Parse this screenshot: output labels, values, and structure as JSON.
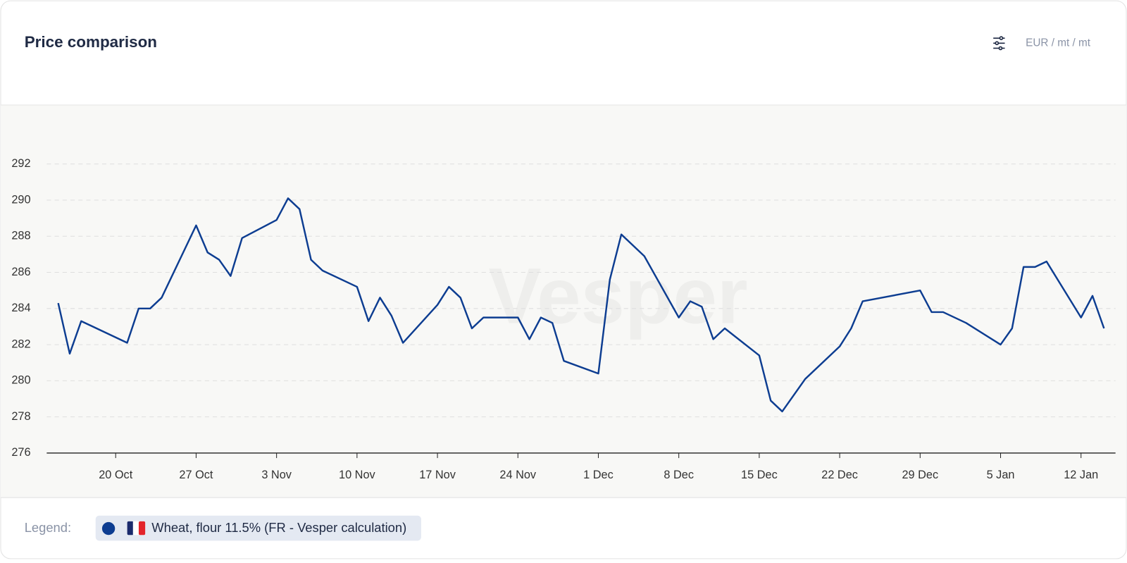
{
  "chart_data": {
    "type": "line",
    "title": "Price comparison",
    "unit": "EUR / mt / mt",
    "legend_label": "Legend:",
    "watermark": "Vesper",
    "x": [
      -5,
      -4,
      -3,
      1,
      2,
      3,
      4,
      7,
      8,
      9,
      10,
      11,
      14,
      15,
      16,
      17,
      18,
      21,
      22,
      23,
      24,
      25,
      28,
      29,
      30,
      31,
      32,
      35,
      36,
      37,
      38,
      39,
      42,
      43,
      44,
      46,
      49,
      50,
      51,
      52,
      53,
      56,
      57,
      58,
      60,
      63,
      64,
      65,
      70,
      71,
      72,
      74,
      77,
      78,
      79,
      80,
      81,
      84,
      85,
      86
    ],
    "series": [
      {
        "name": "Wheat, flour 11.5% (FR - Vesper calculation)",
        "color": "#0d3d91",
        "values": [
          284.3,
          281.5,
          283.3,
          282.1,
          284.0,
          284.0,
          284.6,
          288.6,
          287.1,
          286.7,
          285.8,
          287.9,
          288.9,
          290.1,
          289.5,
          286.7,
          286.1,
          285.2,
          283.3,
          284.6,
          283.6,
          282.1,
          284.2,
          285.2,
          284.6,
          282.9,
          283.5,
          283.5,
          282.3,
          283.5,
          283.2,
          281.1,
          280.4,
          285.6,
          288.1,
          286.9,
          283.5,
          284.4,
          284.1,
          282.3,
          282.9,
          281.4,
          278.9,
          278.3,
          280.1,
          281.9,
          282.9,
          284.4,
          285.0,
          283.8,
          283.8,
          283.2,
          282.0,
          282.9,
          286.3,
          286.3,
          286.6,
          283.5,
          284.7,
          282.9
        ]
      }
    ],
    "xlim": [
      -6,
      87
    ],
    "xticks": [
      {
        "value": 0,
        "label": "20 Oct"
      },
      {
        "value": 7,
        "label": "27 Oct"
      },
      {
        "value": 14,
        "label": "3 Nov"
      },
      {
        "value": 21,
        "label": "10 Nov"
      },
      {
        "value": 28,
        "label": "17 Nov"
      },
      {
        "value": 35,
        "label": "24 Nov"
      },
      {
        "value": 42,
        "label": "1 Dec"
      },
      {
        "value": 49,
        "label": "8 Dec"
      },
      {
        "value": 56,
        "label": "15 Dec"
      },
      {
        "value": 63,
        "label": "22 Dec"
      },
      {
        "value": 70,
        "label": "29 Dec"
      },
      {
        "value": 77,
        "label": "5 Jan"
      },
      {
        "value": 84,
        "label": "12 Jan"
      }
    ],
    "ylim": [
      276,
      292
    ],
    "yticks": [
      276,
      278,
      280,
      282,
      284,
      286,
      288,
      290,
      292
    ],
    "grid": true
  }
}
